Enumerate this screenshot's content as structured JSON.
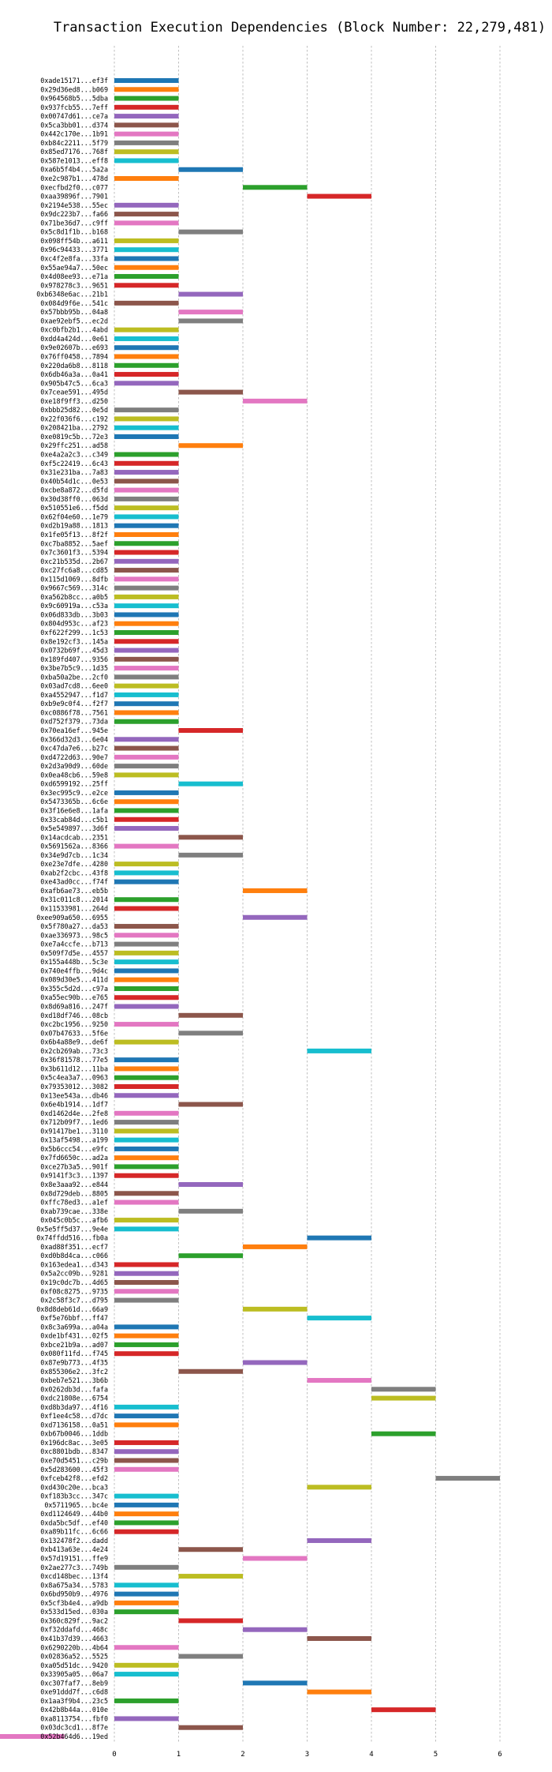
{
  "chart_data": {
    "type": "bar",
    "orientation": "horizontal-gantt",
    "title": "Transaction Execution Dependencies (Block Number: 22,279,481)",
    "xlabel": "",
    "ylabel": "",
    "xlim": [
      0,
      6.5
    ],
    "xticks": [
      0,
      1,
      2,
      3,
      4,
      5,
      6
    ],
    "grid": "vertical-dashed",
    "legend": "none",
    "palette": [
      "#1f77b4",
      "#ff7f0e",
      "#2ca02c",
      "#d62728",
      "#9467bd",
      "#8c564b",
      "#e377c2",
      "#7f7f7f",
      "#bcbd22",
      "#17becf"
    ],
    "transactions": [
      "0xade15171...ef3f",
      "0x29d36ed8...b069",
      "0x964568b5...5dba",
      "0x937fcb55...7eff",
      "0x00747d61...ce7a",
      "0x5ca3bb01...d374",
      "0x442c170e...1b91",
      "0xb84c2211...5f79",
      "0x85ed7176...768f",
      "0x587e1013...eff8",
      "0xa6b5f4b4...5a2a",
      "0xe2c987b1...478d",
      "0xecfbd2f0...c077",
      "0xaa39896f...7901",
      "0x2194e538...55ec",
      "0x9dc223b7...fa66",
      "0x71be36d7...c9ff",
      "0x5c8d1f1b...b168",
      "0x098ff54b...a611",
      "0x96c94433...3771",
      "0xc4f2e8fa...33fa",
      "0x55ae94a7...50ec",
      "0x4d08ee93...e71a",
      "0x978278c3...9651",
      "0xb6348e6ac...21b1",
      "0x084d9f6e...541c",
      "0x57bbb95b...04a8",
      "0xae92ebf5...ec2d",
      "0xc0bfb2b1...4abd",
      "0xdd4a424d...0e61",
      "0x9e02607b...e693",
      "0x76ff0458...7894",
      "0x220da6b8...8118",
      "0x6db46a3a...0a41",
      "0x905b47c5...6ca3",
      "0x7ceae591...495d",
      "0xe18f9ff3...d250",
      "0xbbb25d82...0e5d",
      "0x22f036f6...c192",
      "0x208421ba...2792",
      "0xe0819c5b...72e3",
      "0x29ffc251...ad58",
      "0xe4a2a2c3...c349",
      "0xf5c22419...6c43",
      "0x31e231ba...7a83",
      "0x40b54d1c...0e53",
      "0xcbe8a872...d5fd",
      "0x30d38ff0...063d",
      "0x510551e6...f5dd",
      "0x62f04e60...1e79",
      "0xd2b19a88...1813",
      "0x1fe05f13...8f2f",
      "0xc7ba8852...5aef",
      "0x7c3601f3...5394",
      "0xc21b535d...2b67",
      "0xc27fc6a8...cd85",
      "0x115d1069...8dfb",
      "0x9667c569...314c",
      "0xa562b8cc...a0b5",
      "0x9c60919a...c53a",
      "0x06d833db...3b03",
      "0x804d953c...af23",
      "0xf622f299...1c53",
      "0x8e192cf3...145a",
      "0x0732b69f...45d3",
      "0x189fd407...9356",
      "0x3be7b5c9...1d35",
      "0xba50a2be...2cf0",
      "0x03ad7cd8...6ee0",
      "0xa4552947...f1d7",
      "0xb9e9c0f4...f2f7",
      "0xc0886f78...7561",
      "0xd752f379...73da",
      "0x70ea16ef...945e",
      "0x366d32d3...6e04",
      "0xc47da7e6...b27c",
      "0xd4722d63...90e7",
      "0x2d3a90d9...60de",
      "0x0ea48cb6...59e8",
      "0xd6599192...25ff",
      "0x3ec995c9...e2ce",
      "0x5473365b...6c6e",
      "0x3f16e6e8...1afa",
      "0x33cab84d...c5b1",
      "0x5e549897...3d6f",
      "0x14acdcab...2351",
      "0x5691562a...8366",
      "0x34e9d7cb...1c34",
      "0xe23e7dfe...4280",
      "0xab2f2cbc...43f8",
      "0xe43ad0cc...f74f",
      "0xafb6ae73...eb5b",
      "0x31c011c8...2014",
      "0x11533981...264d",
      "0xee909a650...6955",
      "0x5f780a27...da53",
      "0xae336973...98c5",
      "0xe7a4ccfe...b713",
      "0x509f7d5e...4557",
      "0x155a448b...5c3e",
      "0x740e4ffb...9d4c",
      "0x089d30e5...411d",
      "0x355c5d2d...c97a",
      "0xa55ec90b...e765",
      "0x8d69a816...247f",
      "0xd18df746...08cb",
      "0xc2bc1956...9250",
      "0x07b47633...5f6e",
      "0x6b4a88e9...de6f",
      "0x2cb269ab...73c3",
      "0x36f81578...77e5",
      "0x3b611d12...11ba",
      "0x5c4ea3a7...0963",
      "0x79353012...3082",
      "0x13ee543a...db46",
      "0x6e4b1914...1df7",
      "0xd1462d4e...2fe8",
      "0x712b09f7...1ed6",
      "0x91417be1...3110",
      "0x13af5498...a199",
      "0x5b6ccc54...e9fc",
      "0x7fd6650c...ad2a",
      "0xce27b3a5...901f",
      "0x9141f3c3...1397",
      "0x8e3aaa92...e844",
      "0x8d729deb...8805",
      "0xffc78ed3...a1ef",
      "0xab739cae...338e",
      "0x045c0b5c...afb6",
      "0x5e5ff5d37...9e4e",
      "0x74ffdd516...fb0a",
      "0xad88f351...ecf7",
      "0xd0b8d4ca...c066",
      "0x163edea1...d343",
      "0x5a2cc09b...9281",
      "0x19c0dc7b...4d65",
      "0xf08c8275...9735",
      "0x2c58f3c7...d795",
      "0x8d8deb61d...66a9",
      "0xf5e76bbf...ff47",
      "0x8c3a699a...a04a",
      "0xde1bf431...02f5",
      "0xbce21b9a...ad07",
      "0x080f11fd...f745",
      "0x87e9b773...4f35",
      "0x855306e2...3fc2",
      "0xbeb7e521...3b6b",
      "0x0262db3d...fafa",
      "0xdc21808e...6754",
      "0xd8b3da97...4f16",
      "0xf1ee4c58...d7dc",
      "0xd7136158...0a51",
      "0xb67b0046...1ddb",
      "0x196dc8ac...3e05",
      "0xc8801bdb...8347",
      "0xe70d5451...c29b",
      "0x5d283600...45f3",
      "0xfceb42f8...efd2",
      "0xd430c20e...bca3",
      "0xf183b3cc...347c",
      "0x5711965...bc4e",
      "0xd1124649...44b0",
      "0xda5bc5df...ef40",
      "0xa89b11fc...6c66",
      "0x132478f2...dadd",
      "0xb413a63e...4e24",
      "0x57d19151...ffe9",
      "0x2ae277c3...749b",
      "0xcd148bec...13f4",
      "0x8a675a34...5783",
      "0x6bd950b9...4976",
      "0x5cf3b4e4...a9db",
      "0x533d15ed...030a",
      "0x360c829f...9ac2",
      "0xf32ddafd...468c",
      "0x41b37d39...4663",
      "0x6290220b...4b64",
      "0x02836a52...5525",
      "0xa05d51dc...9420",
      "0x33905a05...06a7",
      "0xc307faf7...8eb9",
      "0xe91ddd7f...c6d8",
      "0x1aa3f9b4...23c5",
      "0x42b8b44a...010e",
      "0xa8113754...fbf0",
      "0x03dc3cd1...8f7e",
      "0x52b464d6...19ed"
    ],
    "starts": [
      0,
      0,
      0,
      0,
      0,
      0,
      0,
      0,
      0,
      0,
      1,
      0,
      2,
      3,
      0,
      0,
      0,
      1,
      0,
      0,
      0,
      0,
      0,
      0,
      1,
      0,
      1,
      1,
      0,
      0,
      0,
      0,
      0,
      0,
      0,
      1,
      2,
      0,
      0,
      0,
      0,
      1,
      0,
      0,
      0,
      0,
      0,
      0,
      0,
      0,
      0,
      0,
      0,
      0,
      0,
      0,
      0,
      0,
      0,
      0,
      0,
      0,
      0,
      0,
      0,
      0,
      0,
      0,
      0,
      0,
      0,
      0,
      0,
      1,
      0,
      0,
      0,
      0,
      0,
      1,
      0,
      0,
      0,
      0,
      0,
      1,
      0,
      1,
      0,
      0,
      0,
      2,
      0,
      0,
      2,
      0,
      0,
      0,
      0,
      0,
      0,
      0,
      0,
      0,
      0,
      1,
      0,
      1,
      0,
      3,
      0,
      0,
      0,
      0,
      0,
      1,
      0,
      0,
      0,
      0,
      0,
      0,
      0,
      0,
      1,
      0,
      0,
      1,
      0,
      0,
      3,
      2,
      1,
      0,
      0,
      0,
      0,
      0,
      2,
      3,
      0,
      0,
      0,
      0,
      2,
      1,
      3,
      4,
      4,
      0,
      0,
      0,
      4,
      0,
      0,
      0,
      0,
      5,
      3,
      0,
      0,
      0,
      0,
      0,
      3,
      1,
      2,
      0,
      1,
      0,
      0,
      0,
      0,
      1,
      2,
      3,
      0,
      1,
      0,
      0,
      2,
      3,
      0,
      4,
      0,
      1
    ],
    "colors": [
      0,
      1,
      2,
      3,
      4,
      5,
      6,
      7,
      8,
      9,
      0,
      1,
      2,
      3,
      4,
      5,
      6,
      7,
      8,
      9,
      0,
      1,
      2,
      3,
      4,
      5,
      6,
      7,
      8,
      9,
      0,
      1,
      2,
      3,
      4,
      5,
      6,
      7,
      8,
      9,
      0,
      1,
      2,
      3,
      4,
      5,
      6,
      7,
      8,
      9,
      0,
      1,
      2,
      3,
      4,
      5,
      6,
      7,
      8,
      9,
      0,
      1,
      2,
      3,
      4,
      5,
      6,
      7,
      8,
      9,
      0,
      1,
      2,
      3,
      4,
      5,
      6,
      7,
      8,
      9,
      0,
      1,
      2,
      3,
      4,
      5,
      6,
      7,
      8,
      9,
      0,
      1,
      2,
      3,
      4,
      5,
      6,
      7,
      8,
      9,
      0,
      1,
      2,
      3,
      4,
      5,
      6,
      7,
      8,
      9,
      0,
      1,
      2,
      3,
      4,
      5,
      6,
      7,
      8,
      9,
      0,
      1,
      2,
      3,
      4,
      5,
      6,
      7,
      8,
      9,
      0,
      1,
      2,
      3,
      4,
      5,
      6,
      7,
      8,
      9,
      0,
      1,
      2,
      3,
      4,
      5,
      6,
      7,
      8,
      9,
      0,
      1,
      2,
      3,
      4,
      5,
      6,
      7,
      8,
      9,
      0,
      1,
      2,
      3,
      4,
      5,
      6,
      7,
      8,
      9,
      0,
      1,
      2,
      3,
      4,
      5,
      6,
      7,
      8,
      9,
      0,
      1,
      2,
      3,
      4,
      5,
      6
    ]
  }
}
